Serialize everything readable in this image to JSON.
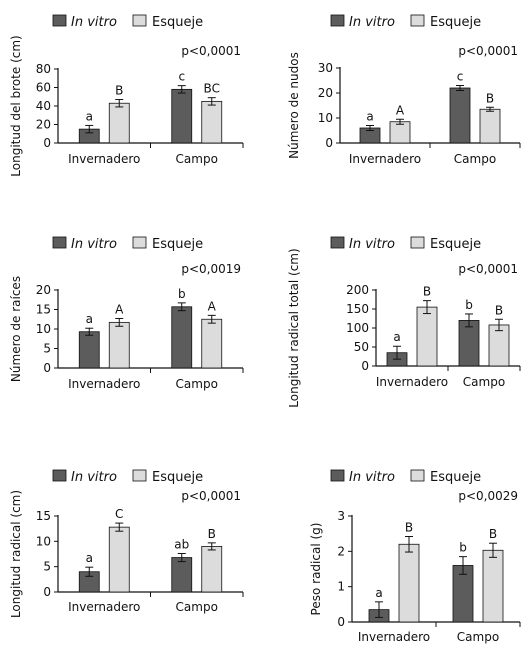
{
  "legend": {
    "series1": "In vitro",
    "series2": "Esqueje"
  },
  "colors": {
    "in_vitro": "#5c5c5c",
    "esqueje": "#dcdcdc",
    "axis": "#111111"
  },
  "chart_data": [
    {
      "type": "bar",
      "categories": [
        "Invernadero",
        "Campo"
      ],
      "ylabel": "Longitud del brote (cm)",
      "pvalue": "p<0,0001",
      "ylim": [
        0,
        80
      ],
      "yticks": [
        0,
        20,
        40,
        60,
        80
      ],
      "series": [
        {
          "name": "In vitro",
          "values": [
            15,
            58
          ],
          "errors": [
            4,
            4
          ],
          "letters": [
            "a",
            "c"
          ]
        },
        {
          "name": "Esqueje",
          "values": [
            43,
            45
          ],
          "errors": [
            4,
            4
          ],
          "letters": [
            "B",
            "BC"
          ]
        }
      ]
    },
    {
      "type": "bar",
      "categories": [
        "Invernadero",
        "Campo"
      ],
      "ylabel": "Número de nudos",
      "pvalue": "p<0,0001",
      "ylim": [
        0,
        30
      ],
      "yticks": [
        0,
        10,
        20,
        30
      ],
      "series": [
        {
          "name": "In vitro",
          "values": [
            6,
            22
          ],
          "errors": [
            1,
            1
          ],
          "letters": [
            "a",
            "c"
          ]
        },
        {
          "name": "Esqueje",
          "values": [
            8.5,
            13.5
          ],
          "errors": [
            1,
            0.8
          ],
          "letters": [
            "A",
            "B"
          ]
        }
      ]
    },
    {
      "type": "bar",
      "categories": [
        "Invernadero",
        "Campo"
      ],
      "ylabel": "Número de raíces",
      "pvalue": "p<0,0019",
      "ylim": [
        0,
        20
      ],
      "yticks": [
        0,
        5,
        10,
        15,
        20
      ],
      "series": [
        {
          "name": "In vitro",
          "values": [
            9.3,
            15.7
          ],
          "errors": [
            0.9,
            1
          ],
          "letters": [
            "a",
            "b"
          ]
        },
        {
          "name": "Esqueje",
          "values": [
            11.7,
            12.5
          ],
          "errors": [
            1,
            1
          ],
          "letters": [
            "A",
            "A"
          ]
        }
      ]
    },
    {
      "type": "bar",
      "categories": [
        "Invernadero",
        "Campo"
      ],
      "ylabel": "Longitud radical total (cm)",
      "pvalue": "p<0,0001",
      "ylim": [
        0,
        200
      ],
      "yticks": [
        0,
        50,
        100,
        150,
        200
      ],
      "series": [
        {
          "name": "In vitro",
          "values": [
            35,
            120
          ],
          "errors": [
            17,
            17
          ],
          "letters": [
            "a",
            "b"
          ]
        },
        {
          "name": "Esqueje",
          "values": [
            155,
            108
          ],
          "errors": [
            17,
            15
          ],
          "letters": [
            "B",
            "B"
          ]
        }
      ]
    },
    {
      "type": "bar",
      "categories": [
        "Invernadero",
        "Campo"
      ],
      "ylabel": "Longitud radical (cm)",
      "pvalue": "p<0,0001",
      "ylim": [
        0,
        15
      ],
      "yticks": [
        0,
        5,
        10,
        15
      ],
      "series": [
        {
          "name": "In vitro",
          "values": [
            4,
            6.8
          ],
          "errors": [
            0.9,
            0.8
          ],
          "letters": [
            "a",
            "ab"
          ]
        },
        {
          "name": "Esqueje",
          "values": [
            12.8,
            9
          ],
          "errors": [
            0.8,
            0.7
          ],
          "letters": [
            "C",
            "B"
          ]
        }
      ]
    },
    {
      "type": "bar",
      "categories": [
        "Invernadero",
        "Campo"
      ],
      "ylabel": "Peso radical (g)",
      "pvalue": "p<0,0029",
      "ylim": [
        0,
        3
      ],
      "yticks": [
        0,
        1,
        2,
        3
      ],
      "series": [
        {
          "name": "In vitro",
          "values": [
            0.35,
            1.6
          ],
          "errors": [
            0.22,
            0.25
          ],
          "letters": [
            "a",
            "b"
          ]
        },
        {
          "name": "Esqueje",
          "values": [
            2.2,
            2.03
          ],
          "errors": [
            0.22,
            0.2
          ],
          "letters": [
            "B",
            "B"
          ]
        }
      ]
    }
  ]
}
